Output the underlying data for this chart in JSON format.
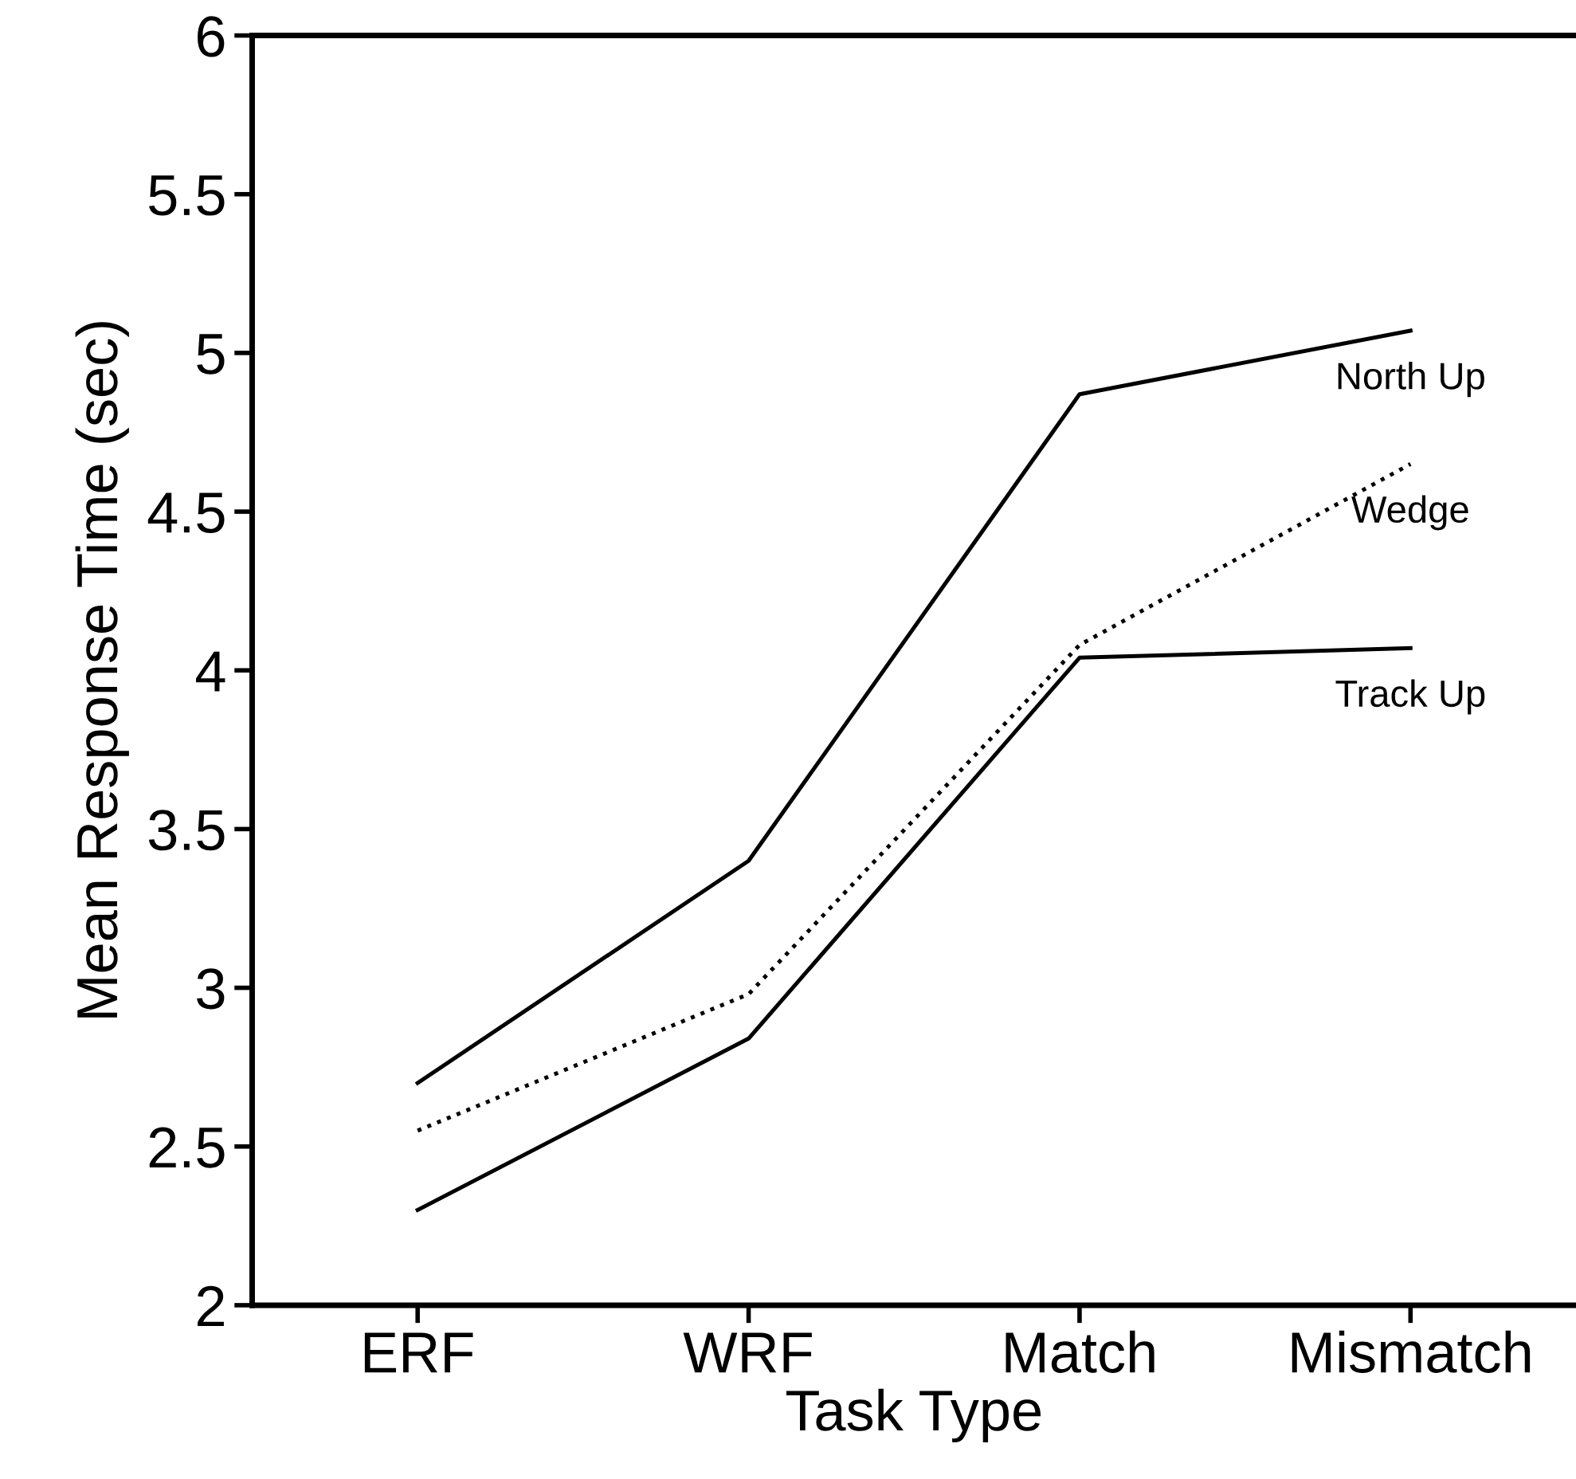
{
  "chart_data": {
    "type": "line",
    "xlabel": "Task Type",
    "ylabel": "Mean Response Time (sec)",
    "categories": [
      "ERF",
      "WRF",
      "Match",
      "Mismatch"
    ],
    "series": [
      {
        "name": "North Up",
        "color": "#000000",
        "line_style": "solid",
        "values": [
          2.7,
          3.4,
          4.87,
          5.07
        ]
      },
      {
        "name": "Wedge",
        "color": "#000000",
        "line_style": "dotted",
        "values": [
          2.55,
          2.98,
          4.08,
          4.65
        ]
      },
      {
        "name": "Track Up",
        "color": "#000000",
        "line_style": "solid",
        "values": [
          2.3,
          2.84,
          4.04,
          4.07
        ]
      }
    ],
    "ylim": [
      2,
      6
    ],
    "yticks": [
      2,
      2.5,
      3,
      3.5,
      4,
      4.5,
      5,
      5.5,
      6
    ],
    "grid": false,
    "legend": false
  }
}
